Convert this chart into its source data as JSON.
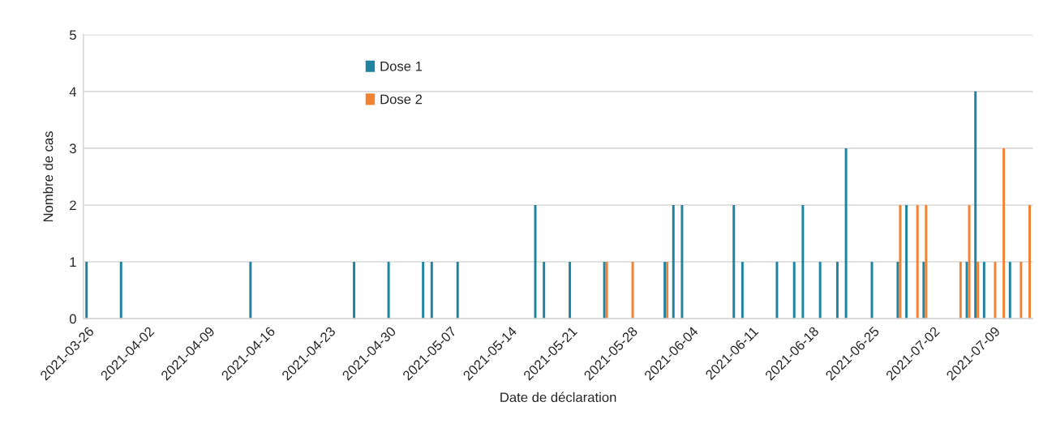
{
  "chart_data": {
    "type": "bar",
    "xlabel": "Date de déclaration",
    "ylabel": "Nombre de cas",
    "series": [
      {
        "name": "Dose 1",
        "color": "#2084a0",
        "x": [
          "2021-03-26",
          "2021-03-30",
          "2021-04-14",
          "2021-04-26",
          "2021-04-30",
          "2021-05-04",
          "2021-05-05",
          "2021-05-08",
          "2021-05-17",
          "2021-05-18",
          "2021-05-21",
          "2021-05-25",
          "2021-06-01",
          "2021-06-02",
          "2021-06-03",
          "2021-06-09",
          "2021-06-10",
          "2021-06-14",
          "2021-06-16",
          "2021-06-17",
          "2021-06-19",
          "2021-06-21",
          "2021-06-22",
          "2021-06-25",
          "2021-06-28",
          "2021-06-29",
          "2021-07-01",
          "2021-07-06",
          "2021-07-07",
          "2021-07-08",
          "2021-07-11"
        ],
        "values": [
          1,
          1,
          1,
          1,
          1,
          1,
          1,
          1,
          2,
          1,
          1,
          1,
          1,
          2,
          2,
          2,
          1,
          1,
          1,
          2,
          1,
          1,
          3,
          1,
          1,
          2,
          1,
          1,
          4,
          1,
          1
        ]
      },
      {
        "name": "Dose 2",
        "color": "#f28234",
        "x": [
          "2021-05-25",
          "2021-05-28",
          "2021-06-01",
          "2021-06-28",
          "2021-06-30",
          "2021-07-01",
          "2021-07-05",
          "2021-07-06",
          "2021-07-07",
          "2021-07-09",
          "2021-07-10",
          "2021-07-12",
          "2021-07-13"
        ],
        "values": [
          1,
          1,
          1,
          2,
          2,
          2,
          1,
          2,
          1,
          1,
          3,
          1,
          2
        ]
      }
    ],
    "xlim": [
      "2021-03-25T12:00",
      "2021-07-13T12:00"
    ],
    "xticks": [
      "2021-03-26",
      "2021-04-02",
      "2021-04-09",
      "2021-04-16",
      "2021-04-23",
      "2021-04-30",
      "2021-05-07",
      "2021-05-14",
      "2021-05-21",
      "2021-05-28",
      "2021-06-04",
      "2021-06-11",
      "2021-06-18",
      "2021-06-25",
      "2021-07-02",
      "2021-07-09"
    ],
    "ylim": [
      0,
      5
    ],
    "yticks": [
      0,
      1,
      2,
      3,
      4,
      5
    ],
    "grid": "y",
    "legend": "top"
  }
}
